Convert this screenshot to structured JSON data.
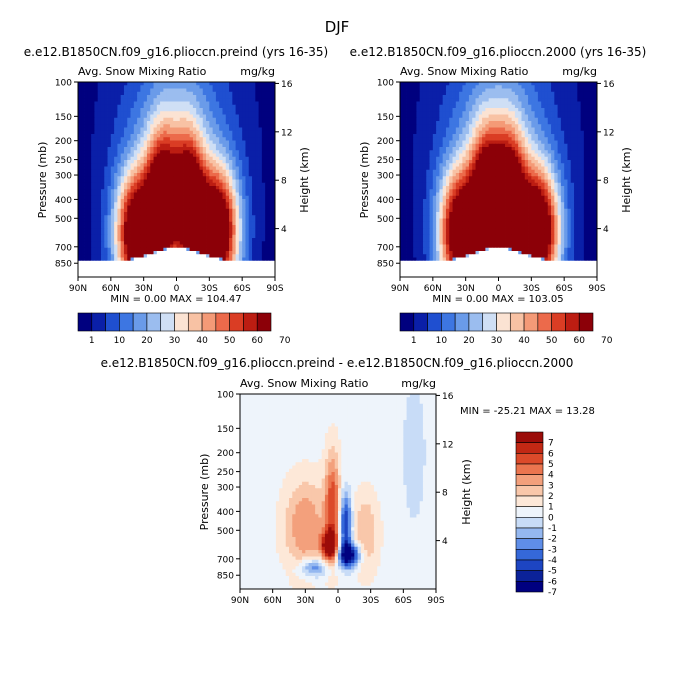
{
  "figure": {
    "title": "DJF"
  },
  "colors": {
    "seq": [
      "#00007f",
      "#0a1fa8",
      "#1f4fd0",
      "#3d76e2",
      "#6a9be9",
      "#9bbdef",
      "#cfdff5",
      "#fbe3d3",
      "#f8c2a4",
      "#f49a77",
      "#ec6a4b",
      "#da3d24",
      "#bc1d12",
      "#8c0008"
    ],
    "div": [
      "#000080",
      "#0b2299",
      "#1d45c2",
      "#3568d9",
      "#5f8ee8",
      "#95b8f0",
      "#c8dcf7",
      "#eef4fb",
      "#fde8d8",
      "#f9c7aa",
      "#f3a07c",
      "#eb754f",
      "#dc4a2a",
      "#c22814",
      "#9b0c09"
    ]
  },
  "chart_data": [
    {
      "type": "contour",
      "subtitle": "e.e12.B1850CN.f09_g16.plioccn.preind (yrs 16-35)",
      "variable": "Avg. Snow Mixing Ratio",
      "units": "mg/kg",
      "xlabel": "",
      "ylabel": "Pressure (mb)",
      "y2label": "Height (km)",
      "xticks": [
        "90N",
        "60N",
        "30N",
        "0",
        "30S",
        "60S",
        "90S"
      ],
      "yticks": [
        100,
        150,
        200,
        250,
        300,
        400,
        500,
        700,
        850
      ],
      "y2ticks": [
        4,
        8,
        12,
        16
      ],
      "ylim": [
        1000,
        100
      ],
      "stats": "MIN =    0.00   MAX =  104.47",
      "min": 0.0,
      "max": 104.47,
      "colorbar_labels": [
        "1",
        "10",
        "20",
        "30",
        "40",
        "50",
        "60",
        "70"
      ],
      "blobs": [
        {
          "lat": 36,
          "p": 610,
          "sl": 14,
          "sp": 0.52,
          "a": 78
        },
        {
          "lat": -37,
          "p": 590,
          "sl": 14,
          "sp": 0.52,
          "a": 80
        },
        {
          "lat": 13,
          "p": 420,
          "sl": 10,
          "sp": 0.55,
          "a": 66
        },
        {
          "lat": -11,
          "p": 430,
          "sl": 10,
          "sp": 0.55,
          "a": 66
        },
        {
          "lat": 0,
          "p": 200,
          "sl": 30,
          "sp": 0.75,
          "a": 24
        }
      ]
    },
    {
      "type": "contour",
      "subtitle": "e.e12.B1850CN.f09_g16.plioccn.2000 (yrs 16-35)",
      "variable": "Avg. Snow Mixing Ratio",
      "units": "mg/kg",
      "xlabel": "",
      "ylabel": "Pressure (mb)",
      "y2label": "Height (km)",
      "xticks": [
        "90N",
        "60N",
        "30N",
        "0",
        "30S",
        "60S",
        "90S"
      ],
      "yticks": [
        100,
        150,
        200,
        250,
        300,
        400,
        500,
        700,
        850
      ],
      "y2ticks": [
        4,
        8,
        12,
        16
      ],
      "ylim": [
        1000,
        100
      ],
      "stats": "MIN =    0.00   MAX =  103.05",
      "min": 0.0,
      "max": 103.05,
      "colorbar_labels": [
        "1",
        "10",
        "20",
        "30",
        "40",
        "50",
        "60",
        "70"
      ],
      "blobs": [
        {
          "lat": 35,
          "p": 600,
          "sl": 14,
          "sp": 0.52,
          "a": 76
        },
        {
          "lat": -36,
          "p": 590,
          "sl": 14,
          "sp": 0.52,
          "a": 80
        },
        {
          "lat": 11,
          "p": 420,
          "sl": 10,
          "sp": 0.55,
          "a": 68
        },
        {
          "lat": -10,
          "p": 420,
          "sl": 10,
          "sp": 0.55,
          "a": 66
        },
        {
          "lat": 0,
          "p": 200,
          "sl": 30,
          "sp": 0.75,
          "a": 24
        }
      ]
    },
    {
      "type": "contour",
      "subtitle": "e.e12.B1850CN.f09_g16.plioccn.preind - e.e12.B1850CN.f09_g16.plioccn.2000",
      "variable": "Avg. Snow Mixing Ratio",
      "units": "mg/kg",
      "xlabel": "",
      "ylabel": "Pressure (mb)",
      "y2label": "Height (km)",
      "xticks": [
        "90N",
        "60N",
        "30N",
        "0",
        "30S",
        "60S",
        "90S"
      ],
      "yticks": [
        100,
        150,
        200,
        250,
        300,
        400,
        500,
        700,
        850
      ],
      "y2ticks": [
        4,
        8,
        12,
        16
      ],
      "ylim": [
        1000,
        100
      ],
      "stats": "MIN =  -25.21   MAX =    13.28",
      "min": -25.21,
      "max": 13.28,
      "colorbar_labels": [
        "7",
        "6",
        "5",
        "4",
        "3",
        "2",
        "1",
        "0",
        "-1",
        "-2",
        "-3",
        "-4",
        "-5",
        "-6",
        "-7"
      ],
      "blobs": [
        {
          "lat": 30,
          "p": 480,
          "sl": 14,
          "sp": 0.4,
          "a": 3.5
        },
        {
          "lat": 5,
          "p": 370,
          "sl": 5,
          "sp": 0.45,
          "a": 5
        },
        {
          "lat": 8,
          "p": 600,
          "sl": 5,
          "sp": 0.12,
          "a": 8
        },
        {
          "lat": -7,
          "p": 460,
          "sl": 4,
          "sp": 0.25,
          "a": -6
        },
        {
          "lat": -10,
          "p": 670,
          "sl": 7,
          "sp": 0.1,
          "a": -8
        },
        {
          "lat": -25,
          "p": 520,
          "sl": 9,
          "sp": 0.35,
          "a": 2.5
        },
        {
          "lat": 22,
          "p": 780,
          "sl": 10,
          "sp": 0.08,
          "a": -4
        },
        {
          "lat": -70,
          "p": 200,
          "sl": 10,
          "sp": 0.8,
          "a": -0.8
        }
      ]
    }
  ]
}
